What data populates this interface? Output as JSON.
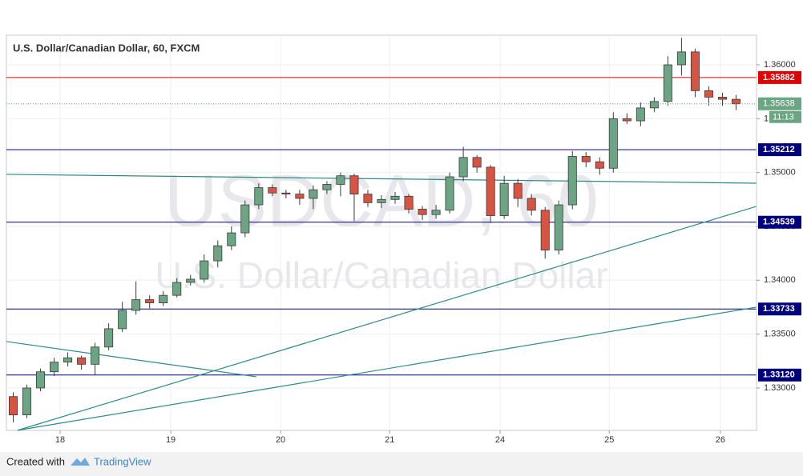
{
  "chart_data": {
    "type": "candlestick",
    "title": "U.S. Dollar/Canadian Dollar, 60, FXCM",
    "watermark": {
      "symbol": "USDCAD, 60",
      "name": "U.S. Dollar/Canadian Dollar"
    },
    "up_color": "#6ba583",
    "down_color": "#d75442",
    "open": [
      1.3292,
      1.3275,
      1.33,
      1.3315,
      1.3324,
      1.3328,
      1.3322,
      1.3338,
      1.3355,
      1.3372,
      1.3382,
      1.3379,
      1.3386,
      1.3398,
      1.3401,
      1.3418,
      1.3432,
      1.3444,
      1.347,
      1.3486,
      1.3481,
      1.348,
      1.3476,
      1.3484,
      1.3489,
      1.3497,
      1.348,
      1.3472,
      1.3475,
      1.3478,
      1.3466,
      1.3461,
      1.3465,
      1.3496,
      1.3514,
      1.3505,
      1.346,
      1.349,
      1.3476,
      1.3465,
      1.3428,
      1.347,
      1.3515,
      1.351,
      1.3504,
      1.355,
      1.3548,
      1.356,
      1.3566,
      1.36,
      1.3612,
      1.3576,
      1.357,
      1.3568
    ],
    "high": [
      1.3296,
      1.3303,
      1.3318,
      1.3328,
      1.3333,
      1.333,
      1.3342,
      1.336,
      1.338,
      1.3399,
      1.3386,
      1.339,
      1.3402,
      1.3405,
      1.3424,
      1.3437,
      1.345,
      1.3474,
      1.349,
      1.3489,
      1.3484,
      1.3484,
      1.3488,
      1.3492,
      1.35,
      1.3499,
      1.3484,
      1.3479,
      1.3482,
      1.348,
      1.3469,
      1.347,
      1.35,
      1.3524,
      1.3516,
      1.3507,
      1.3497,
      1.3494,
      1.348,
      1.3468,
      1.3474,
      1.352,
      1.3519,
      1.3514,
      1.3556,
      1.3555,
      1.3565,
      1.357,
      1.3608,
      1.3625,
      1.3615,
      1.358,
      1.3574,
      1.3572
    ],
    "low": [
      1.3268,
      1.3272,
      1.3297,
      1.3311,
      1.332,
      1.3317,
      1.3312,
      1.3335,
      1.3352,
      1.3368,
      1.3374,
      1.3376,
      1.3384,
      1.3395,
      1.3398,
      1.3412,
      1.3428,
      1.344,
      1.3466,
      1.3478,
      1.3476,
      1.347,
      1.3466,
      1.348,
      1.3478,
      1.3455,
      1.3468,
      1.3467,
      1.3471,
      1.3462,
      1.3456,
      1.3457,
      1.3462,
      1.3492,
      1.35,
      1.3453,
      1.3457,
      1.3468,
      1.346,
      1.342,
      1.3424,
      1.3466,
      1.3505,
      1.3498,
      1.35,
      1.3545,
      1.3543,
      1.3556,
      1.3562,
      1.359,
      1.357,
      1.3562,
      1.3562,
      1.3558
    ],
    "close": [
      1.3275,
      1.33,
      1.3315,
      1.3324,
      1.3328,
      1.3322,
      1.3338,
      1.3355,
      1.3372,
      1.3382,
      1.3379,
      1.3386,
      1.3398,
      1.3401,
      1.3418,
      1.3432,
      1.3444,
      1.347,
      1.3486,
      1.3481,
      1.348,
      1.3476,
      1.3484,
      1.3489,
      1.3497,
      1.348,
      1.3472,
      1.3475,
      1.3478,
      1.3466,
      1.3461,
      1.3465,
      1.3496,
      1.3514,
      1.3505,
      1.346,
      1.349,
      1.3476,
      1.3465,
      1.3428,
      1.347,
      1.3515,
      1.351,
      1.3504,
      1.355,
      1.3548,
      1.356,
      1.3566,
      1.36,
      1.3612,
      1.3576,
      1.357,
      1.3568,
      1.35638
    ],
    "xlim": [
      -0.5,
      54.5
    ],
    "xticks": [
      {
        "value": 3.44,
        "label": "18"
      },
      {
        "value": 11.55,
        "label": "19"
      },
      {
        "value": 19.6,
        "label": "20"
      },
      {
        "value": 27.6,
        "label": "21"
      },
      {
        "value": 35.7,
        "label": "24"
      },
      {
        "value": 43.7,
        "label": "25"
      },
      {
        "value": 51.85,
        "label": "26"
      }
    ],
    "ylim": [
      1.32606,
      1.36275
    ],
    "yticks": [
      {
        "value": 1.33,
        "label": "1.33000"
      },
      {
        "value": 1.335,
        "label": "1.33500"
      },
      {
        "value": 1.34,
        "label": "1.34000"
      },
      {
        "value": 1.345,
        "label": "1.34500"
      },
      {
        "value": 1.35,
        "label": "1.35000"
      },
      {
        "value": 1.355,
        "label": "1.35500"
      },
      {
        "value": 1.36,
        "label": "1.36000"
      }
    ],
    "grid": true,
    "levels": [
      {
        "value": 1.35882,
        "label": "1.35882",
        "color": "#e00000"
      },
      {
        "value": 1.35212,
        "label": "1.35212",
        "color": "#00007f"
      },
      {
        "value": 1.34539,
        "label": "1.34539",
        "color": "#00007f"
      },
      {
        "value": 1.33733,
        "label": "1.33733",
        "color": "#00007f"
      },
      {
        "value": 1.3312,
        "label": "1.33120",
        "color": "#00007f"
      }
    ],
    "last_price": {
      "value": 1.35638,
      "label": "1.35638",
      "countdown": "11:13",
      "color": "#6ba583"
    },
    "trend_lines": [
      {
        "x": [
          -0.5,
          54.5
        ],
        "y": [
          1.34983,
          1.34901
        ]
      },
      {
        "x": [
          -0.5,
          17.83
        ],
        "y": [
          1.33431,
          1.33104
        ]
      },
      {
        "x": [
          0.32,
          54.5
        ],
        "y": [
          1.32607,
          1.34686
        ]
      },
      {
        "x": [
          0.32,
          54.5
        ],
        "y": [
          1.32607,
          1.3375
        ]
      }
    ],
    "trend_color": "#2e8b8b"
  },
  "footer": {
    "created": "Created with",
    "brand": "TradingView"
  }
}
